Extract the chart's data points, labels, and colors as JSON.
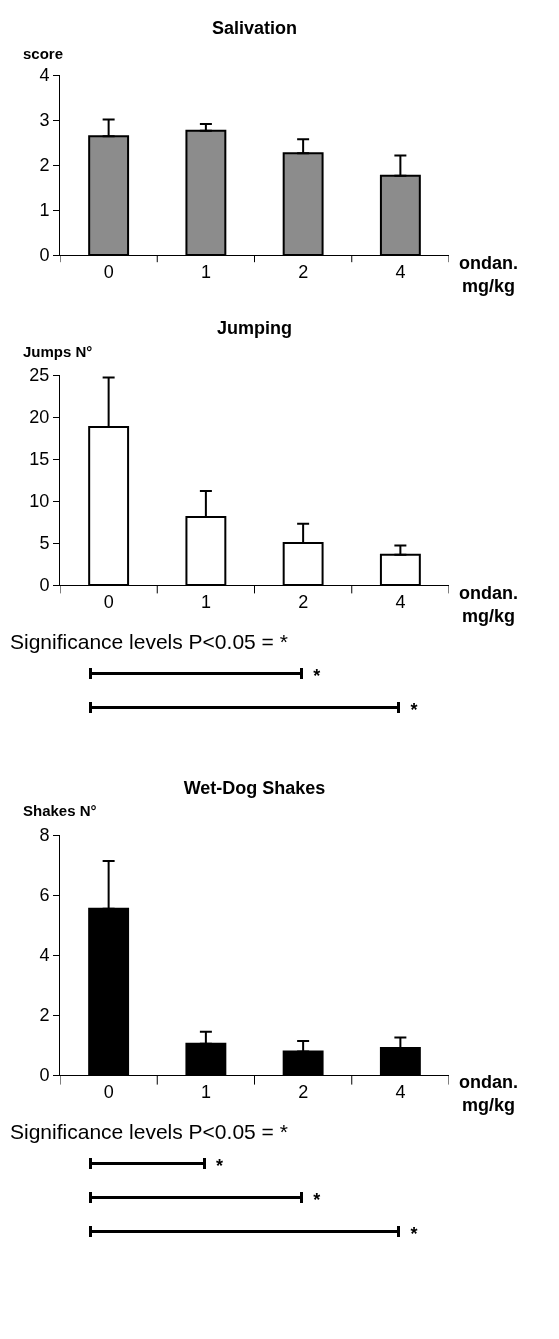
{
  "chart_data": [
    {
      "type": "bar",
      "title": "Salivation",
      "ylabel": "score",
      "xlabel": "ondan. mg/kg",
      "categories": [
        "0",
        "1",
        "2",
        "4"
      ],
      "values": [
        2.64,
        2.76,
        2.26,
        1.76
      ],
      "errors": [
        [
          2.64,
          3.01
        ],
        [
          2.76,
          2.91
        ],
        [
          2.26,
          2.57
        ],
        [
          1.76,
          2.21
        ]
      ],
      "color": "#8c8c8c",
      "ylim": [
        0,
        4
      ],
      "yticks": [
        0,
        1,
        2,
        3,
        4
      ],
      "grid": false
    },
    {
      "type": "bar",
      "title": "Jumping",
      "ylabel": "Jumps N°",
      "xlabel": "ondan. mg/kg",
      "categories": [
        "0",
        "1",
        "2",
        "4"
      ],
      "values": [
        18.8,
        8.1,
        5.0,
        3.6
      ],
      "errors": [
        [
          18.8,
          24.7
        ],
        [
          8.1,
          11.2
        ],
        [
          5.0,
          7.3
        ],
        [
          3.6,
          4.7
        ]
      ],
      "color": "#ffffff",
      "ylim": [
        0,
        25
      ],
      "yticks": [
        0,
        5,
        10,
        15,
        20,
        25
      ],
      "grid": false,
      "annotations": [
        "Significance levels P<0.05 = *",
        "*",
        "*"
      ]
    },
    {
      "type": "bar",
      "title": "Wet-Dog Shakes",
      "ylabel": "Shakes N°",
      "xlabel": "ondan. mg/kg",
      "categories": [
        "0",
        "1",
        "2",
        "4"
      ],
      "values": [
        5.54,
        1.04,
        0.78,
        0.9
      ],
      "errors": [
        [
          5.54,
          7.13
        ],
        [
          1.04,
          1.44
        ],
        [
          0.78,
          1.13
        ],
        [
          0.9,
          1.25
        ]
      ],
      "color": "#000000",
      "ylim": [
        0,
        8
      ],
      "yticks": [
        0,
        2,
        4,
        6,
        8
      ],
      "grid": false,
      "annotations": [
        "Significance levels P<0.05 = *",
        "*",
        "*",
        "*"
      ]
    }
  ]
}
